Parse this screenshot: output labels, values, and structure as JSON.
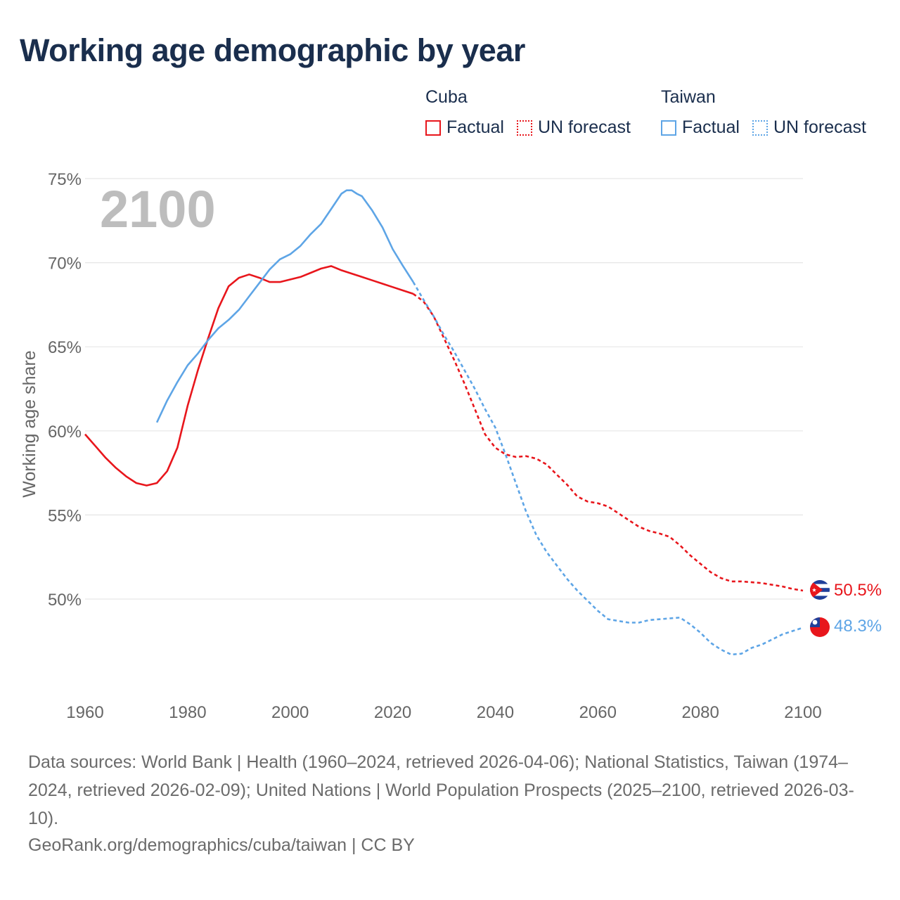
{
  "title": "Working age demographic by year",
  "legend": {
    "groups": [
      {
        "name": "Cuba",
        "factual_label": "Factual",
        "forecast_label": "UN forecast"
      },
      {
        "name": "Taiwan",
        "factual_label": "Factual",
        "forecast_label": "UN forecast"
      }
    ]
  },
  "colors": {
    "cuba": "#e8161c",
    "taiwan": "#5ea5e6",
    "grid": "#e6e6e6",
    "axis_text": "#666666",
    "year_label": "#bdbdbd"
  },
  "footer": {
    "sources": "Data sources: World Bank | Health (1960–2024, retrieved 2026-04-06); National Statistics, Taiwan (1974–2024, retrieved 2026-02-09); United Nations | World Population Prospects (2025–2100, retrieved 2026-03-10).",
    "credit": "GeoRank.org/demographics/cuba/taiwan | CC BY"
  },
  "chart_data": {
    "type": "line",
    "title": "Working age demographic by year",
    "ylabel": "Working age share",
    "xlabel": "",
    "xlim": [
      1960,
      2100
    ],
    "ylim": [
      45,
      76
    ],
    "x_ticks": [
      1960,
      1980,
      2000,
      2020,
      2040,
      2060,
      2080,
      2100
    ],
    "y_ticks": [
      50,
      55,
      60,
      65,
      70,
      75
    ],
    "x_tick_labels": [
      "1960",
      "1980",
      "2000",
      "2020",
      "2040",
      "2060",
      "2080",
      "2100"
    ],
    "y_tick_labels": [
      "50%",
      "55%",
      "60%",
      "65%",
      "70%",
      "75%"
    ],
    "year_label": "2100",
    "series": [
      {
        "name": "Cuba",
        "color": "#e8161c",
        "end_label": "50.5%",
        "factual": {
          "x": [
            1960,
            1962,
            1964,
            1966,
            1968,
            1970,
            1972,
            1974,
            1976,
            1978,
            1980,
            1982,
            1984,
            1986,
            1988,
            1990,
            1992,
            1994,
            1996,
            1998,
            2000,
            2002,
            2004,
            2006,
            2008,
            2010,
            2012,
            2014,
            2016,
            2018,
            2020,
            2022,
            2024
          ],
          "y": [
            59.8,
            59.1,
            58.4,
            57.8,
            57.3,
            56.9,
            56.75,
            56.9,
            57.6,
            59.0,
            61.5,
            63.6,
            65.5,
            67.3,
            68.6,
            69.1,
            69.3,
            69.1,
            68.85,
            68.85,
            69.0,
            69.15,
            69.4,
            69.65,
            69.8,
            69.55,
            69.35,
            69.15,
            68.95,
            68.75,
            68.55,
            68.35,
            68.15
          ]
        },
        "forecast": {
          "x": [
            2024,
            2026,
            2028,
            2030,
            2032,
            2034,
            2036,
            2038,
            2040,
            2042,
            2044,
            2046,
            2048,
            2050,
            2052,
            2054,
            2056,
            2058,
            2060,
            2062,
            2064,
            2066,
            2068,
            2070,
            2072,
            2074,
            2076,
            2078,
            2080,
            2082,
            2084,
            2086,
            2088,
            2090,
            2092,
            2094,
            2096,
            2098,
            2100
          ],
          "y": [
            68.15,
            67.7,
            66.8,
            65.5,
            64.2,
            62.8,
            61.3,
            59.8,
            59.0,
            58.6,
            58.45,
            58.5,
            58.35,
            58.0,
            57.4,
            56.8,
            56.1,
            55.8,
            55.7,
            55.5,
            55.1,
            54.7,
            54.3,
            54.05,
            53.9,
            53.7,
            53.2,
            52.6,
            52.1,
            51.6,
            51.25,
            51.05,
            51.05,
            51.0,
            50.95,
            50.85,
            50.75,
            50.6,
            50.5
          ]
        }
      },
      {
        "name": "Taiwan",
        "color": "#5ea5e6",
        "end_label": "48.3%",
        "factual": {
          "x": [
            1974,
            1976,
            1978,
            1980,
            1982,
            1984,
            1986,
            1988,
            1990,
            1992,
            1994,
            1996,
            1998,
            2000,
            2002,
            2004,
            2006,
            2008,
            2010,
            2011,
            2012,
            2013,
            2014,
            2016,
            2018,
            2020,
            2022,
            2024
          ],
          "y": [
            60.5,
            61.8,
            62.9,
            63.9,
            64.6,
            65.4,
            66.1,
            66.6,
            67.2,
            68.0,
            68.8,
            69.6,
            70.2,
            70.5,
            71.0,
            71.7,
            72.3,
            73.2,
            74.1,
            74.3,
            74.3,
            74.1,
            73.95,
            73.1,
            72.1,
            70.8,
            69.8,
            68.85
          ]
        },
        "forecast": {
          "x": [
            2024,
            2026,
            2028,
            2030,
            2032,
            2034,
            2036,
            2038,
            2040,
            2042,
            2044,
            2046,
            2048,
            2050,
            2052,
            2054,
            2056,
            2058,
            2060,
            2062,
            2064,
            2066,
            2068,
            2070,
            2072,
            2074,
            2076,
            2078,
            2080,
            2082,
            2084,
            2086,
            2088,
            2090,
            2092,
            2094,
            2096,
            2098,
            2100
          ],
          "y": [
            68.85,
            67.8,
            66.8,
            65.7,
            64.7,
            63.6,
            62.5,
            61.3,
            60.2,
            58.6,
            56.9,
            55.2,
            53.8,
            52.8,
            52.0,
            51.2,
            50.5,
            49.9,
            49.3,
            48.8,
            48.7,
            48.6,
            48.6,
            48.75,
            48.8,
            48.85,
            48.9,
            48.5,
            48.0,
            47.4,
            47.0,
            46.7,
            46.75,
            47.1,
            47.3,
            47.6,
            47.9,
            48.1,
            48.3
          ]
        }
      }
    ]
  }
}
